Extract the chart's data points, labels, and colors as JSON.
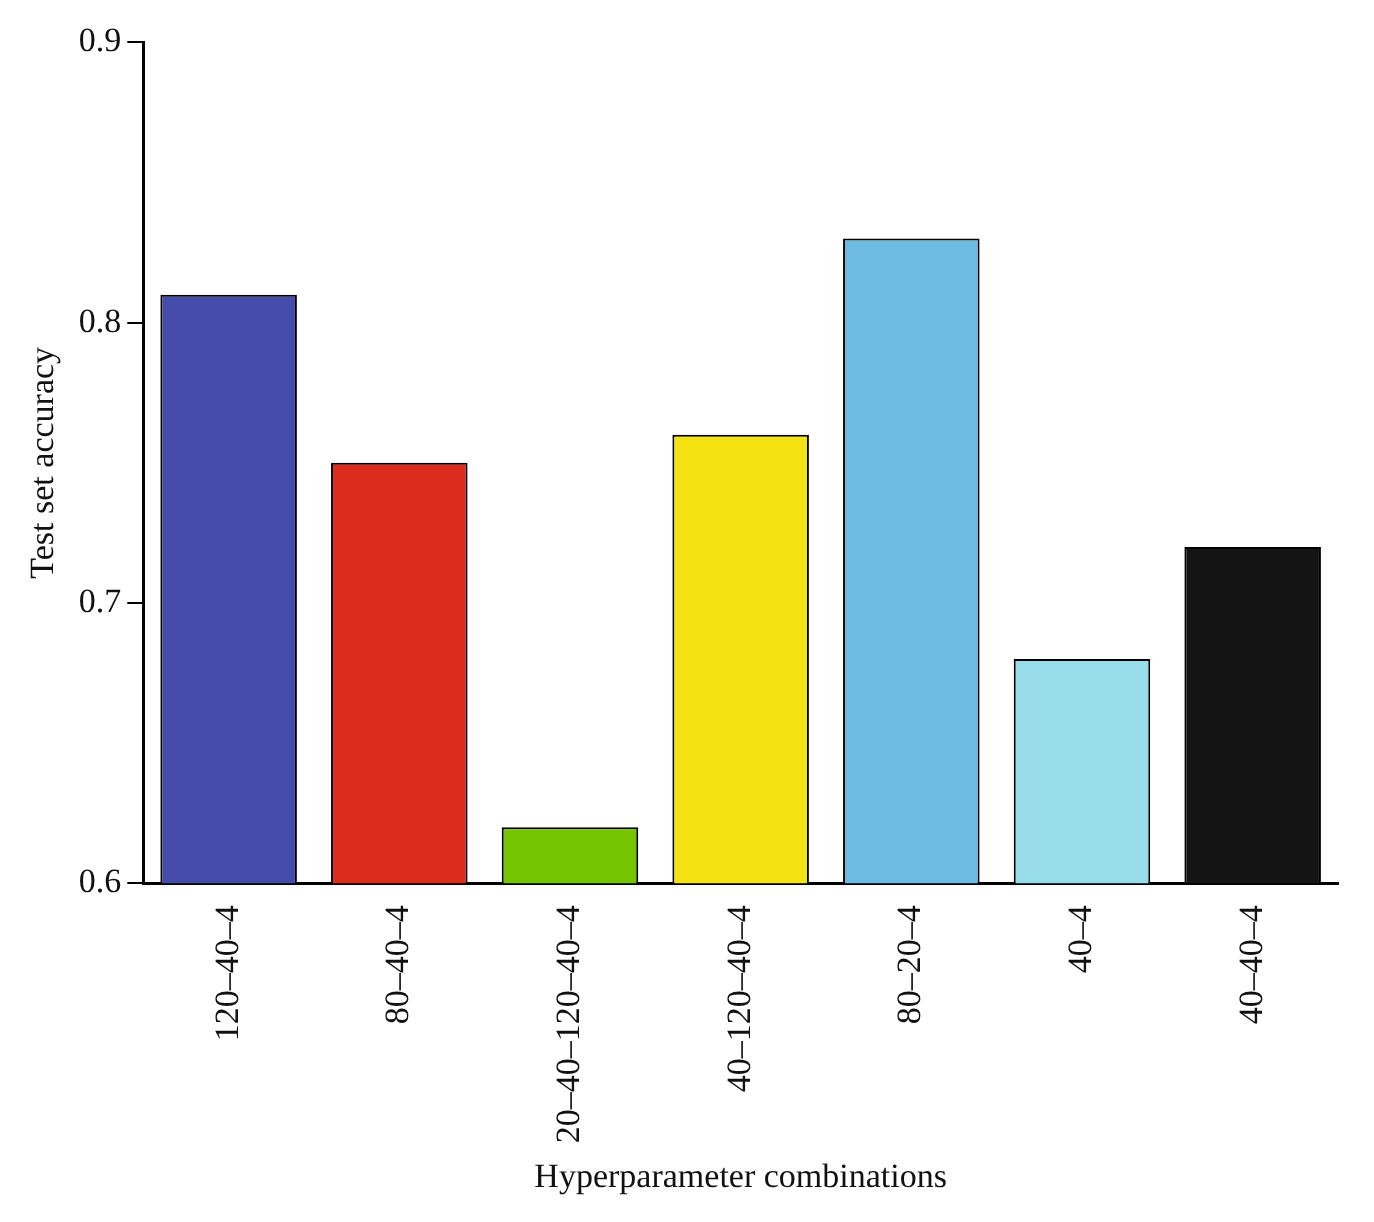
{
  "chart_data": {
    "type": "bar",
    "xlabel": "Hyperparameter combinations",
    "ylabel": "Test set accuracy",
    "categories": [
      "120–40–4",
      "80–40–4",
      "20–40–120–40–4",
      "40–120–40–4",
      "80–20–4",
      "40–4",
      "40–40–4"
    ],
    "values": [
      0.81,
      0.75,
      0.62,
      0.76,
      0.83,
      0.68,
      0.72
    ],
    "colors": [
      "#454ba8",
      "#dc2c1e",
      "#74c400",
      "#f4e212",
      "#6dbbe2",
      "#98dcea",
      "#141414"
    ],
    "ylim": [
      0.6,
      0.9
    ],
    "yticks": [
      0.6,
      0.7,
      0.8,
      0.9
    ],
    "grid": false,
    "legend": false
  }
}
